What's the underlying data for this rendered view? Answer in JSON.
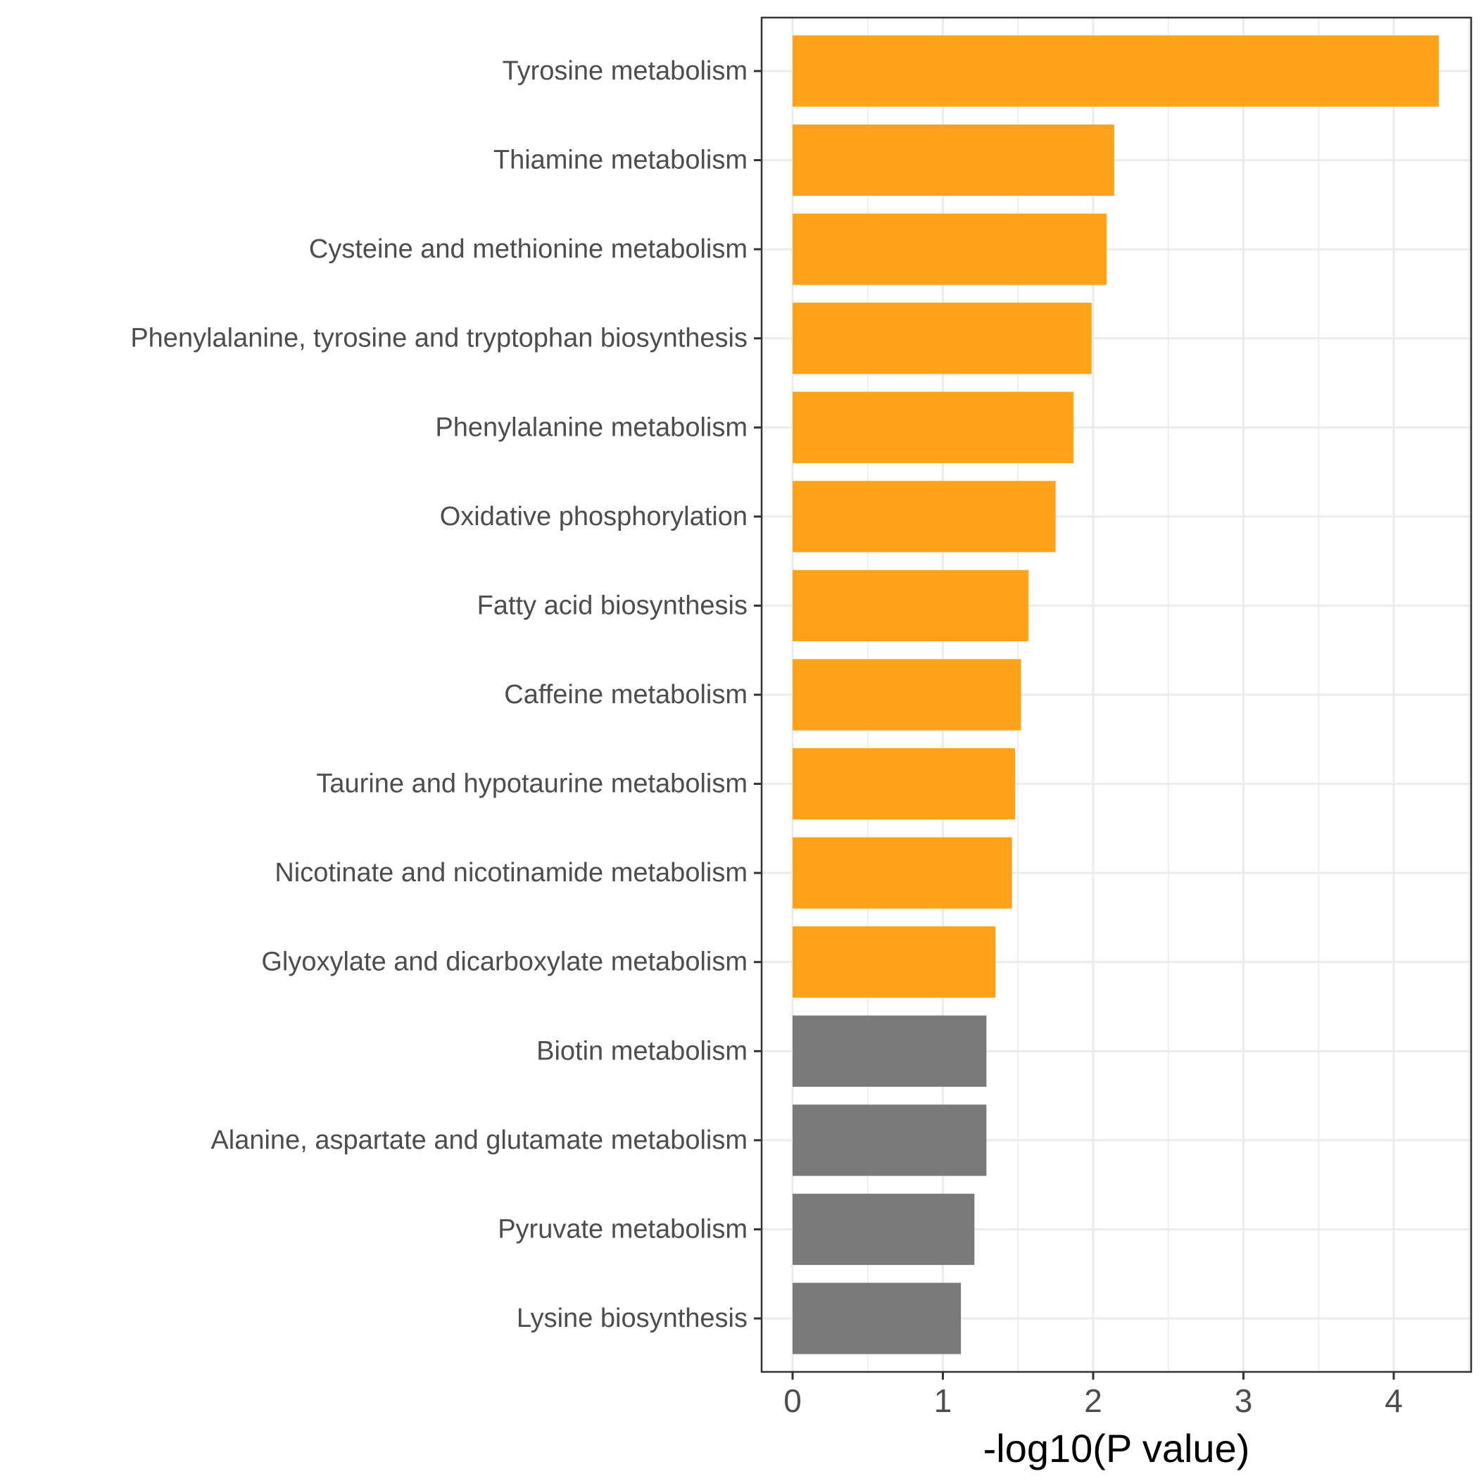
{
  "chart_data": {
    "type": "bar",
    "orientation": "horizontal",
    "title": "",
    "xlabel": "-log10(P value)",
    "ylabel": "",
    "xlim": [
      -0.2,
      4.5
    ],
    "xticks": [
      0,
      1,
      2,
      3,
      4
    ],
    "grid": true,
    "legend": "none",
    "colors": {
      "significant": "#FFA31A",
      "nonsignificant": "#7A7A7A"
    },
    "categories": [
      "Tyrosine metabolism",
      "Thiamine metabolism",
      "Cysteine and methionine metabolism",
      "Phenylalanine, tyrosine and tryptophan biosynthesis",
      "Phenylalanine metabolism",
      "Oxidative phosphorylation",
      "Fatty acid biosynthesis",
      "Caffeine metabolism",
      "Taurine and hypotaurine metabolism",
      "Nicotinate and nicotinamide metabolism",
      "Glyoxylate and dicarboxylate metabolism",
      "Biotin metabolism",
      "Alanine, aspartate and glutamate metabolism",
      "Pyruvate metabolism",
      "Lysine biosynthesis"
    ],
    "values": [
      4.3,
      2.14,
      2.09,
      1.99,
      1.87,
      1.75,
      1.57,
      1.52,
      1.48,
      1.46,
      1.35,
      1.29,
      1.29,
      1.21,
      1.12
    ],
    "significant": [
      true,
      true,
      true,
      true,
      true,
      true,
      true,
      true,
      true,
      true,
      true,
      false,
      false,
      false,
      false
    ]
  }
}
